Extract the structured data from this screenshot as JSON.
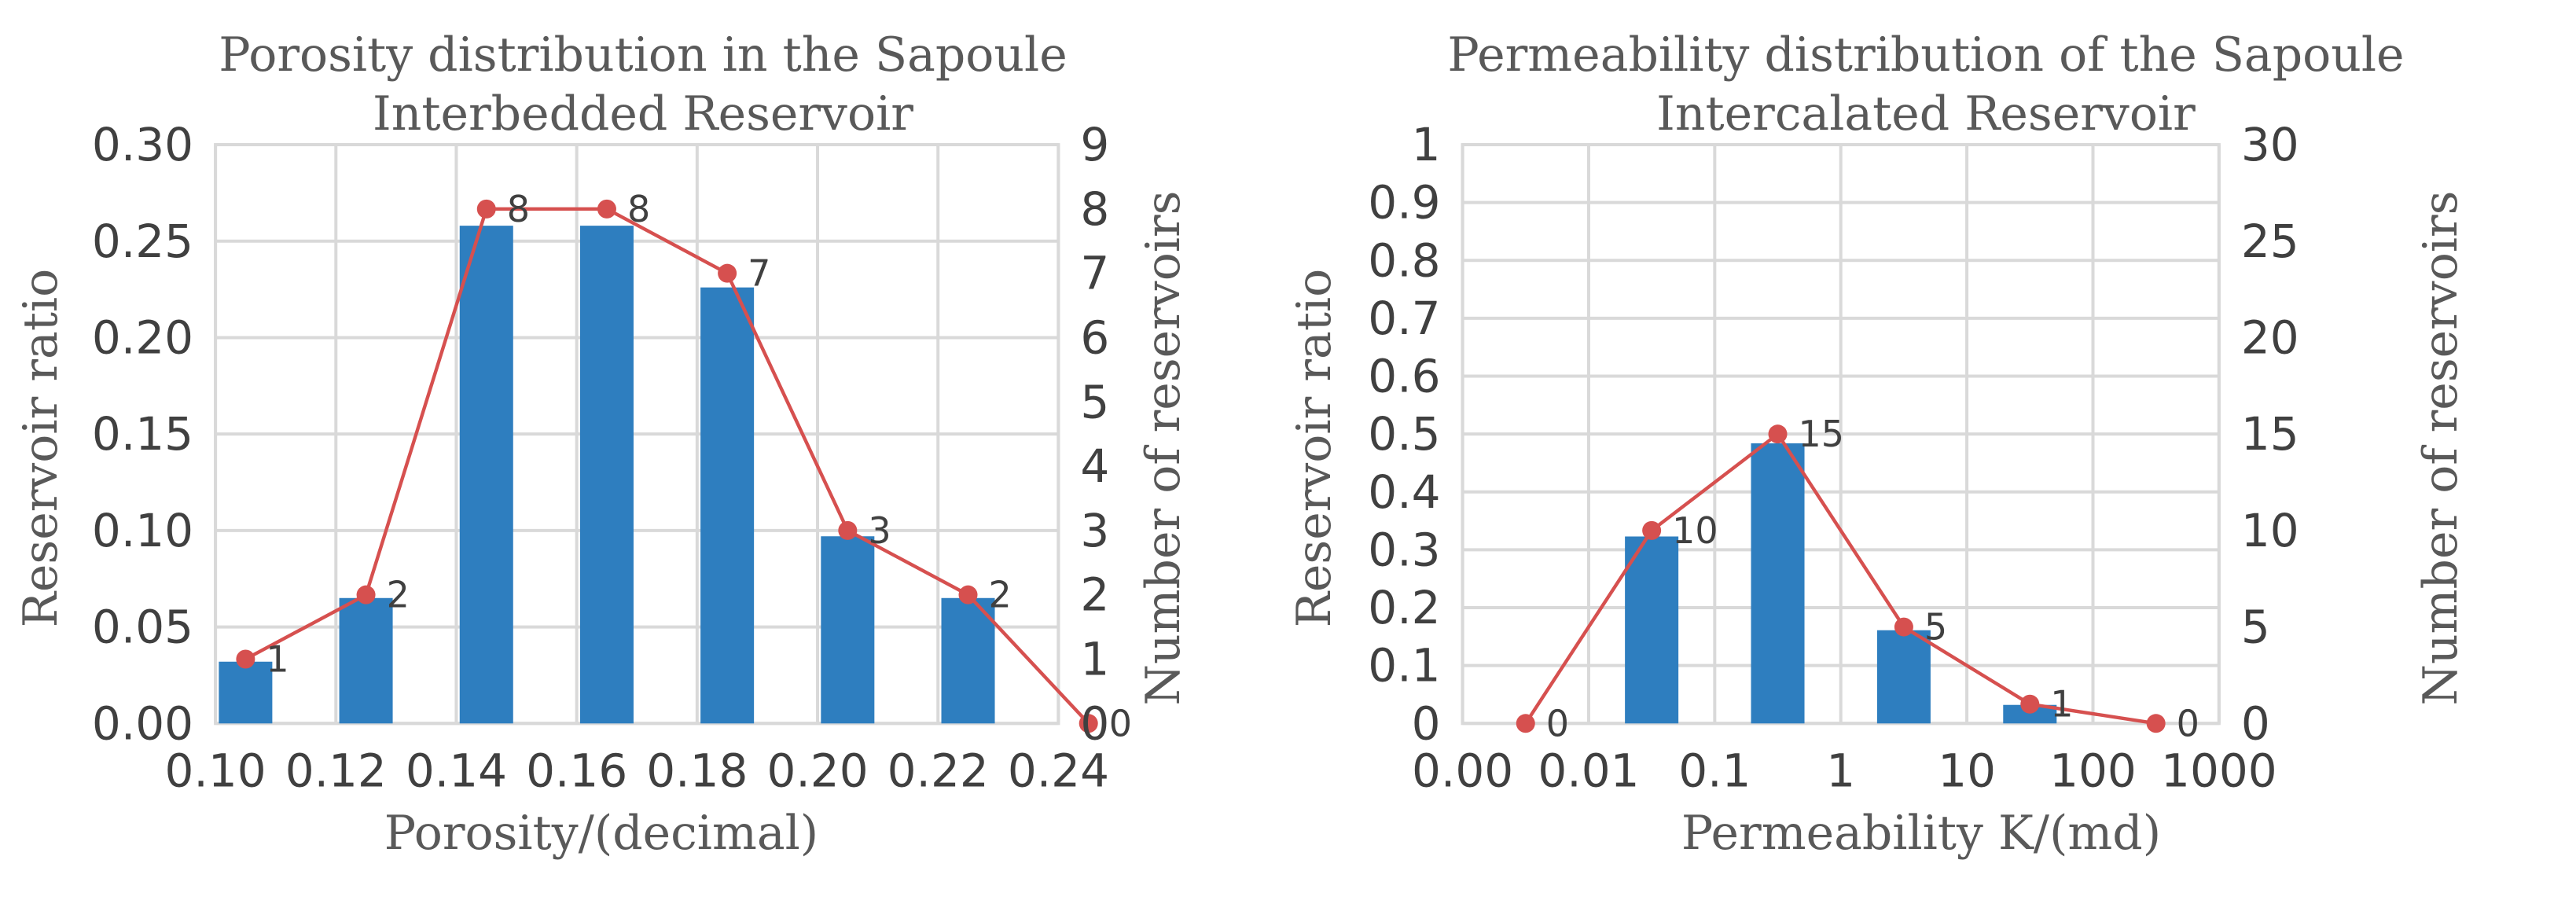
{
  "chart_data": [
    {
      "type": "bar",
      "title": [
        "Porosity distribution in the Sapoule",
        "Interbedded Reservoir"
      ],
      "xlabel": "Porosity/(decimal)",
      "ylabel": "Reservoir ratio",
      "y2label": "Number of reservoirs",
      "x_ticks": [
        "0.10",
        "0.12",
        "0.14",
        "0.16",
        "0.18",
        "0.20",
        "0.22",
        "0.24"
      ],
      "y_ticks": [
        "0.00",
        "0.05",
        "0.10",
        "0.15",
        "0.20",
        "0.25",
        "0.30"
      ],
      "y2_ticks": [
        "0",
        "1",
        "2",
        "3",
        "4",
        "5",
        "6",
        "7",
        "8",
        "9"
      ],
      "ylim": [
        0,
        0.3
      ],
      "y2lim": [
        0,
        9
      ],
      "colors": {
        "bar": "#2e7ebf",
        "line": "#d6504f"
      },
      "bar_series": {
        "name": "Reservoir ratio",
        "x": [
          0.105,
          0.125,
          0.145,
          0.165,
          0.185,
          0.205,
          0.225
        ],
        "values": [
          0.032,
          0.065,
          0.258,
          0.258,
          0.226,
          0.097,
          0.065
        ]
      },
      "line_series": {
        "name": "Number of reservoirs",
        "x": [
          0.105,
          0.125,
          0.145,
          0.165,
          0.185,
          0.205,
          0.225,
          0.245
        ],
        "values": [
          1,
          2,
          8,
          8,
          7,
          3,
          2,
          0
        ],
        "labels": [
          "1",
          "2",
          "8",
          "8",
          "7",
          "3",
          "2",
          "0"
        ]
      }
    },
    {
      "type": "bar",
      "title": [
        "Permeability distribution of the Sapoule",
        "Intercalated Reservoir"
      ],
      "xlabel": "Permeability K/(md)",
      "ylabel": "Reservoir ratio",
      "y2label": "Number of reservoirs",
      "x_ticks": [
        "0.00",
        "0.01",
        "0.1",
        "1",
        "10",
        "100",
        "1000"
      ],
      "y_ticks": [
        "0",
        "0.1",
        "0.2",
        "0.3",
        "0.4",
        "0.5",
        "0.6",
        "0.7",
        "0.8",
        "0.9",
        "1"
      ],
      "y2_ticks": [
        "0",
        "5",
        "10",
        "15",
        "20",
        "25",
        "30"
      ],
      "ylim": [
        0,
        1
      ],
      "y2lim": [
        0,
        30
      ],
      "colors": {
        "bar": "#2e7ebf",
        "line": "#d6504f"
      },
      "bar_series": {
        "name": "Reservoir ratio",
        "x": [
          0.5,
          1.5,
          2.5,
          3.5,
          4.5,
          5.5
        ],
        "values": [
          0,
          0.323,
          0.484,
          0.161,
          0.032,
          0
        ]
      },
      "line_series": {
        "name": "Number of reservoirs",
        "x": [
          0.5,
          1.5,
          2.5,
          3.5,
          4.5,
          5.5
        ],
        "values": [
          0,
          10,
          15,
          5,
          1,
          0
        ],
        "labels": [
          "0",
          "10",
          "15",
          "5",
          "1",
          "0"
        ]
      }
    }
  ]
}
